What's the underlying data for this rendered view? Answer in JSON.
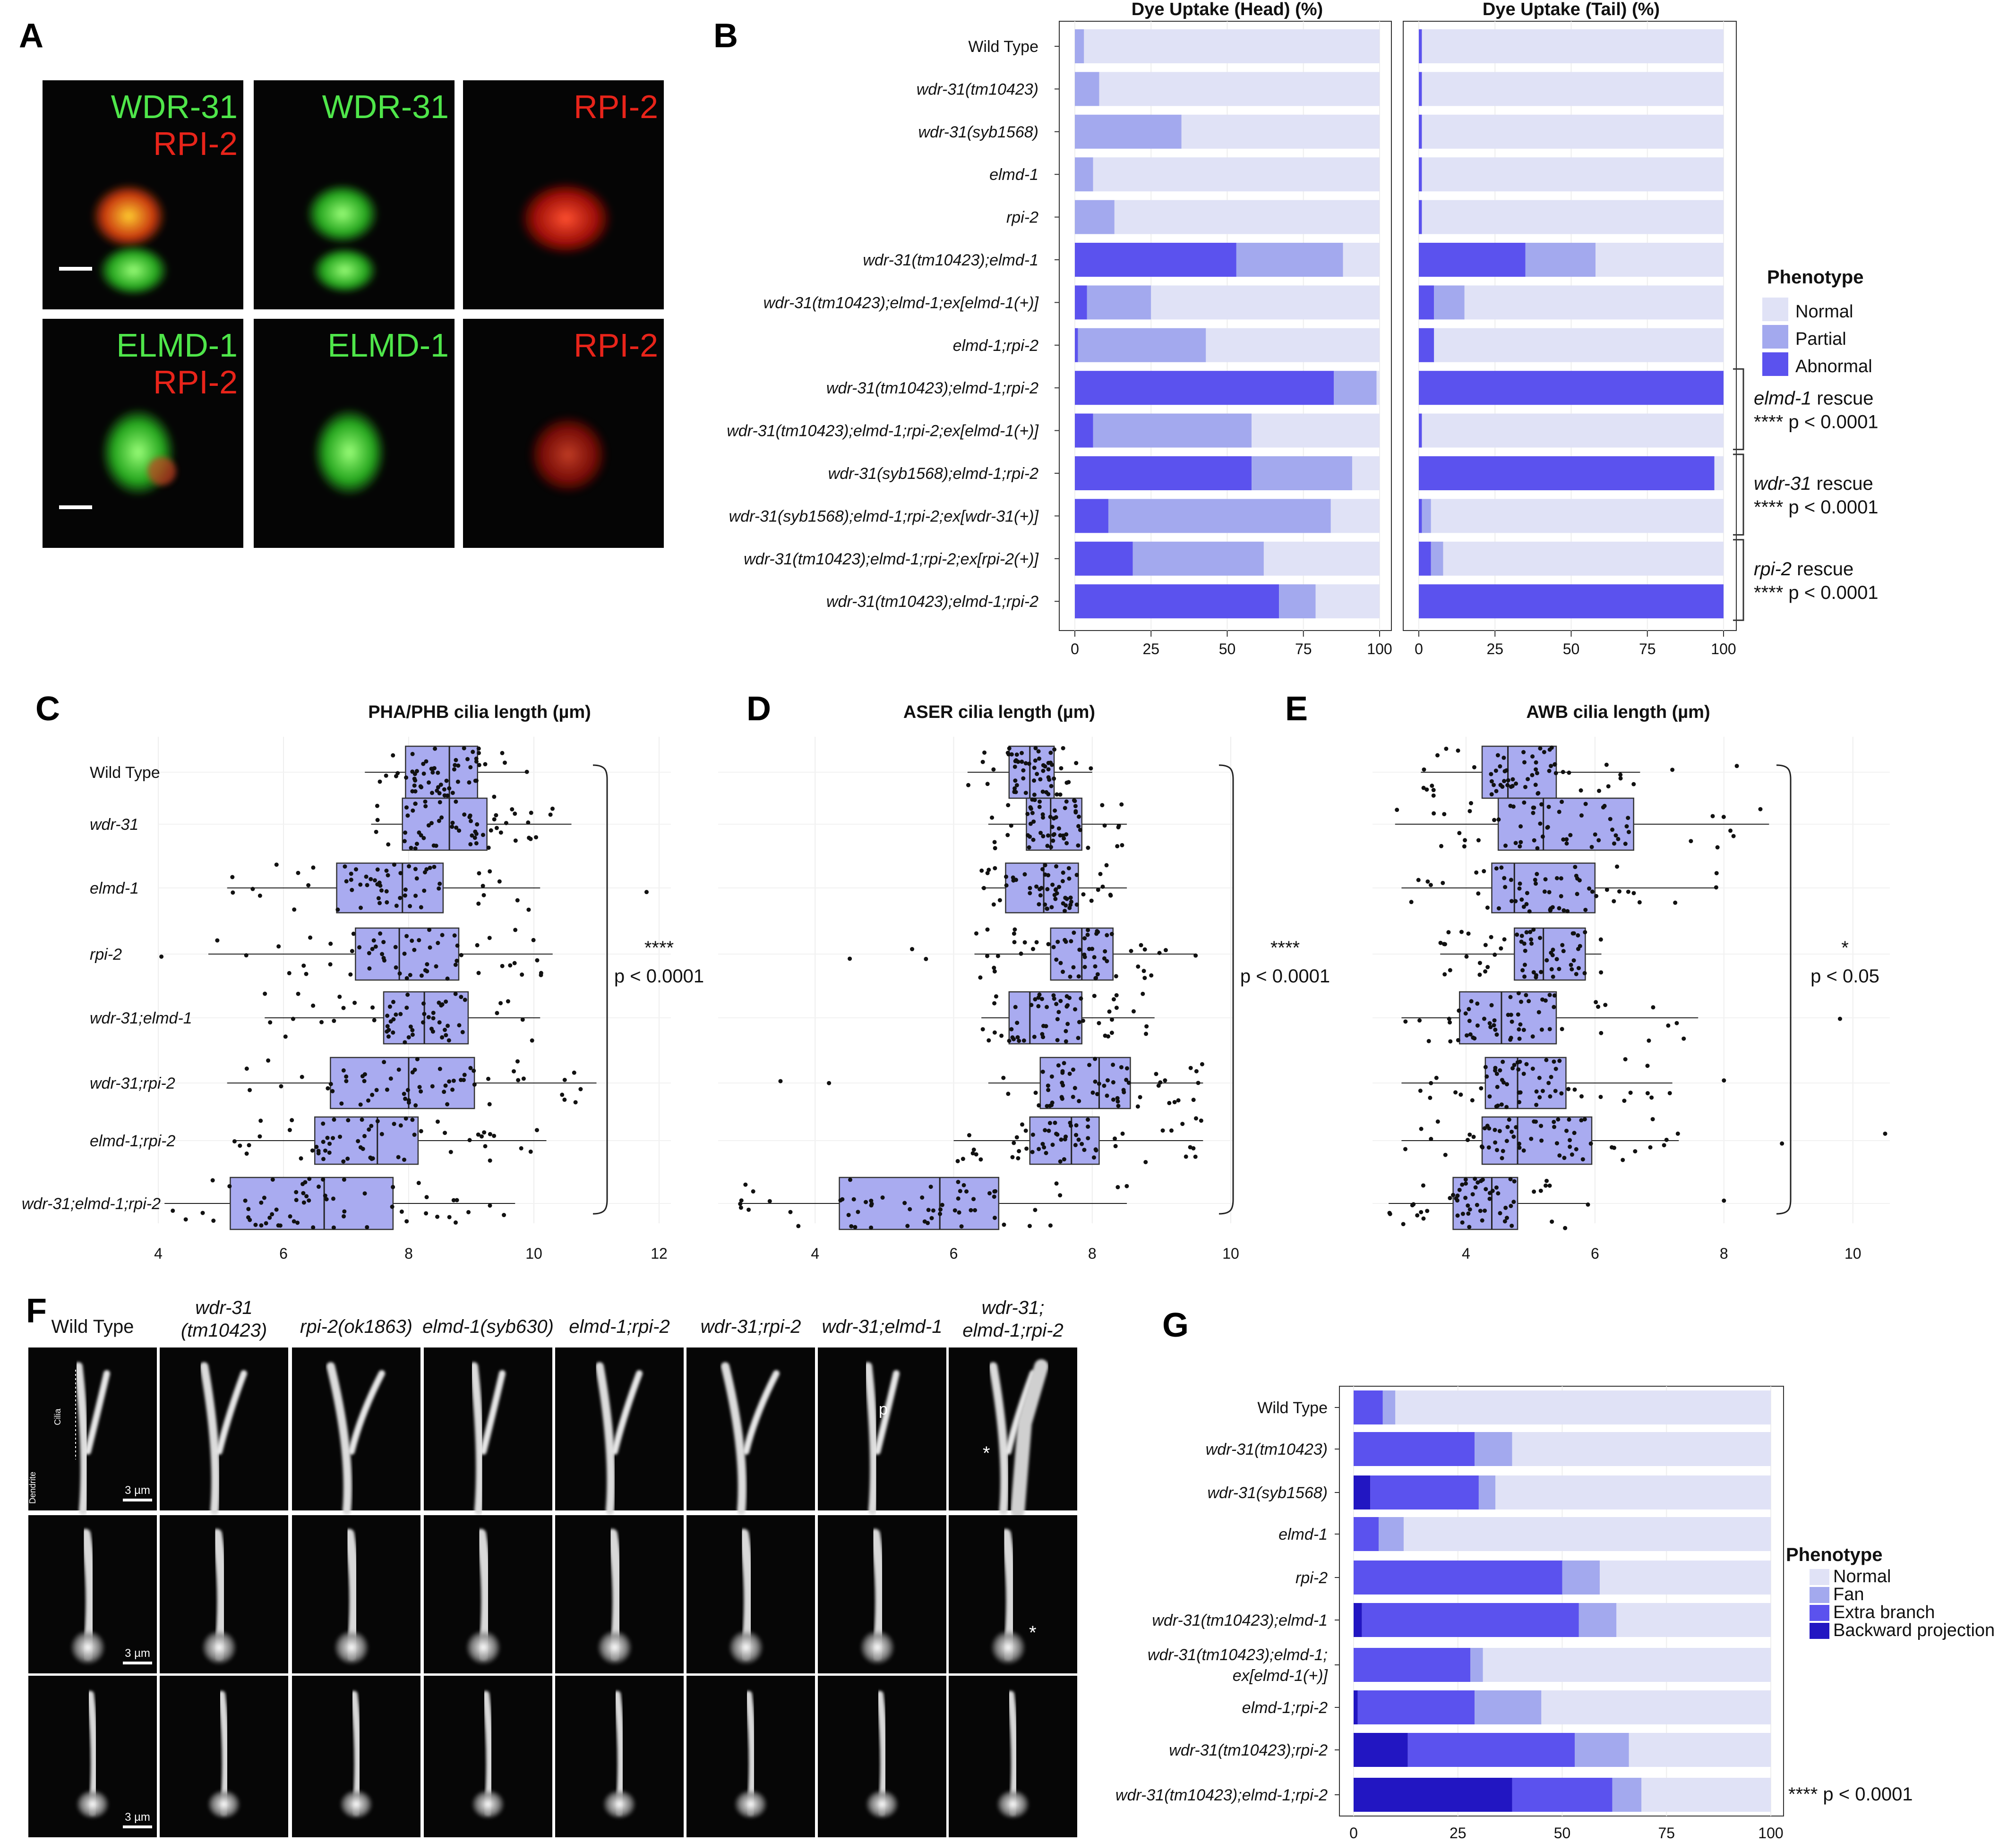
{
  "panel_letters": {
    "A": "A",
    "B": "B",
    "C": "C",
    "D": "D",
    "E": "E",
    "F": "F",
    "G": "G"
  },
  "colors": {
    "normal": "#e0e2f6",
    "partial": "#a3a9ee",
    "abnormal": "#5b52ee",
    "fan": "#a3a9ee",
    "extra_branch": "#5b52ee",
    "backward": "#2216c2",
    "box": "#a9abf0",
    "green": "#4fe64a",
    "red": "#e8241a"
  },
  "panel_a": {
    "rows": [
      [
        {
          "lines": [
            {
              "t": "WDR-31",
              "c": "green"
            },
            {
              "t": "RPI-2",
              "c": "red"
            }
          ],
          "blob": "merge1",
          "scalebar": true
        },
        {
          "lines": [
            {
              "t": "WDR-31",
              "c": "green"
            }
          ],
          "blob": "green1"
        },
        {
          "lines": [
            {
              "t": "RPI-2",
              "c": "red"
            }
          ],
          "blob": "red1"
        }
      ],
      [
        {
          "lines": [
            {
              "t": "ELMD-1",
              "c": "green"
            },
            {
              "t": "RPI-2",
              "c": "red"
            }
          ],
          "blob": "merge2",
          "scalebar": true
        },
        {
          "lines": [
            {
              "t": "ELMD-1",
              "c": "green"
            }
          ],
          "blob": "green2"
        },
        {
          "lines": [
            {
              "t": "RPI-2",
              "c": "red"
            }
          ],
          "blob": "red2"
        }
      ]
    ]
  },
  "chart_data": [
    {
      "id": "B",
      "type": "bar",
      "orientation": "horizontal",
      "stacked": true,
      "facets": [
        "Dye Uptake (Head) (%)",
        "Dye Uptake (Tail) (%)"
      ],
      "categories": [
        "Wild Type",
        "wdr-31(tm10423)",
        "wdr-31(syb1568)",
        "elmd-1",
        "rpi-2",
        "wdr-31(tm10423);elmd-1",
        "wdr-31(tm10423);elmd-1;ex[elmd-1(+)]",
        "elmd-1;rpi-2",
        "wdr-31(tm10423);elmd-1;rpi-2",
        "wdr-31(tm10423);elmd-1;rpi-2;ex[elmd-1(+)]",
        "wdr-31(syb1568);elmd-1;rpi-2",
        "wdr-31(syb1568);elmd-1;rpi-2;ex[wdr-31(+)]",
        "wdr-31(tm10423);elmd-1;rpi-2;ex[rpi-2(+)]",
        "wdr-31(tm10423);elmd-1;rpi-2"
      ],
      "italic": [
        false,
        true,
        true,
        true,
        true,
        true,
        true,
        true,
        true,
        true,
        true,
        true,
        true,
        true
      ],
      "head": {
        "Abnormal": [
          0,
          0,
          0,
          0,
          0,
          53,
          4,
          1,
          85,
          6,
          58,
          11,
          19,
          67
        ],
        "Partial": [
          3,
          8,
          35,
          6,
          13,
          35,
          21,
          42,
          14,
          52,
          33,
          73,
          43,
          12
        ],
        "Normal": [
          97,
          92,
          65,
          94,
          87,
          12,
          75,
          57,
          1,
          42,
          9,
          16,
          38,
          21
        ]
      },
      "tail": {
        "Abnormal": [
          1,
          1,
          1,
          1,
          1,
          35,
          5,
          5,
          100,
          1,
          97,
          1,
          4,
          100
        ],
        "Partial": [
          0,
          0,
          0,
          0,
          0,
          23,
          10,
          0,
          0,
          0,
          0,
          3,
          4,
          0
        ],
        "Normal": [
          99,
          99,
          99,
          99,
          99,
          42,
          85,
          95,
          0,
          99,
          3,
          96,
          92,
          0
        ]
      },
      "xticks": [
        0,
        25,
        50,
        75,
        100
      ],
      "xlim": [
        0,
        100
      ],
      "legend": {
        "title": "Phenotype",
        "entries": [
          "Normal",
          "Partial",
          "Abnormal"
        ]
      },
      "annotations": [
        {
          "name": "elmd-1",
          "rest": " rescue",
          "p": "**** p < 0.0001"
        },
        {
          "name": "wdr-31",
          "rest": " rescue",
          "p": "**** p < 0.0001"
        },
        {
          "name": "rpi-2",
          "rest": " rescue",
          "p": "**** p < 0.0001"
        }
      ]
    },
    {
      "id": "C",
      "type": "box",
      "orientation": "horizontal",
      "title": "PHA/PHB cilia length (µm)",
      "categories": [
        "Wild Type",
        "wdr-31",
        "elmd-1",
        "rpi-2",
        "wdr-31;elmd-1",
        "wdr-31;rpi-2",
        "elmd-1;rpi-2",
        "wdr-31;elmd-1;rpi-2"
      ],
      "italic": [
        false,
        true,
        true,
        true,
        true,
        true,
        true,
        true
      ],
      "boxes": [
        {
          "min": 7.3,
          "q1": 7.95,
          "med": 8.65,
          "q3": 9.1,
          "max": 9.9
        },
        {
          "min": 7.4,
          "q1": 7.9,
          "med": 8.65,
          "q3": 9.25,
          "max": 10.6
        },
        {
          "min": 5.1,
          "q1": 6.85,
          "med": 7.9,
          "q3": 8.55,
          "max": 10.1
        },
        {
          "min": 4.8,
          "q1": 7.15,
          "med": 7.85,
          "q3": 8.8,
          "max": 10.3
        },
        {
          "min": 5.7,
          "q1": 7.6,
          "med": 8.25,
          "q3": 8.95,
          "max": 10.1
        },
        {
          "min": 5.1,
          "q1": 6.75,
          "med": 8.0,
          "q3": 9.05,
          "max": 11.0
        },
        {
          "min": 5.2,
          "q1": 6.5,
          "med": 7.5,
          "q3": 8.15,
          "max": 10.2
        },
        {
          "min": 4.1,
          "q1": 5.15,
          "med": 6.65,
          "q3": 7.75,
          "max": 9.7
        }
      ],
      "xticks": [
        4,
        6,
        8,
        10,
        12
      ],
      "xlim": [
        4,
        12
      ],
      "significance": {
        "stars": "****",
        "p": "p < 0.0001"
      }
    },
    {
      "id": "D",
      "type": "box",
      "orientation": "horizontal",
      "title": "ASER cilia length  (µm)",
      "boxes": [
        {
          "min": 6.2,
          "q1": 6.8,
          "med": 7.1,
          "q3": 7.45,
          "max": 8.0
        },
        {
          "min": 6.5,
          "q1": 7.05,
          "med": 7.4,
          "q3": 7.85,
          "max": 8.5
        },
        {
          "min": 6.4,
          "q1": 6.75,
          "med": 7.3,
          "q3": 7.8,
          "max": 8.5
        },
        {
          "min": 6.3,
          "q1": 7.4,
          "med": 7.85,
          "q3": 8.3,
          "max": 9.5
        },
        {
          "min": 6.4,
          "q1": 6.8,
          "med": 7.1,
          "q3": 7.85,
          "max": 8.9
        },
        {
          "min": 6.5,
          "q1": 7.25,
          "med": 8.1,
          "q3": 8.55,
          "max": 9.6
        },
        {
          "min": 6.0,
          "q1": 7.1,
          "med": 7.7,
          "q3": 8.1,
          "max": 9.6
        },
        {
          "min": 2.9,
          "q1": 4.35,
          "med": 5.8,
          "q3": 6.65,
          "max": 8.5
        }
      ],
      "xticks": [
        4,
        6,
        8,
        10
      ],
      "xlim": [
        2.6,
        10
      ],
      "significance": {
        "stars": "****",
        "p": "p < 0.0001"
      }
    },
    {
      "id": "E",
      "type": "box",
      "orientation": "horizontal",
      "title": "AWB cilia length  (µm)",
      "boxes": [
        {
          "min": 3.3,
          "q1": 4.25,
          "med": 4.65,
          "q3": 5.4,
          "max": 6.7
        },
        {
          "min": 2.9,
          "q1": 4.5,
          "med": 5.2,
          "q3": 6.6,
          "max": 8.7
        },
        {
          "min": 3.0,
          "q1": 4.4,
          "med": 4.75,
          "q3": 6.0,
          "max": 7.9
        },
        {
          "min": 3.6,
          "q1": 4.75,
          "med": 5.2,
          "q3": 5.85,
          "max": 6.1
        },
        {
          "min": 3.0,
          "q1": 3.9,
          "med": 4.55,
          "q3": 5.4,
          "max": 7.6
        },
        {
          "min": 3.0,
          "q1": 4.3,
          "med": 4.8,
          "q3": 5.55,
          "max": 7.2
        },
        {
          "min": 3.0,
          "q1": 4.25,
          "med": 4.8,
          "q3": 5.95,
          "max": 7.3
        },
        {
          "min": 2.8,
          "q1": 3.8,
          "med": 4.4,
          "q3": 4.8,
          "max": 5.9
        }
      ],
      "xticks": [
        4,
        6,
        8,
        10
      ],
      "xlim": [
        2.55,
        10.5
      ],
      "significance": {
        "stars": "*",
        "p": "p < 0.05"
      }
    },
    {
      "id": "G",
      "type": "bar",
      "orientation": "horizontal",
      "stacked": true,
      "categories": [
        "Wild Type",
        "wdr-31(tm10423)",
        "wdr-31(syb1568)",
        "elmd-1",
        "rpi-2",
        "wdr-31(tm10423);elmd-1",
        "wdr-31(tm10423);elmd-1;\nex[elmd-1(+)]",
        "elmd-1;rpi-2",
        "wdr-31(tm10423);rpi-2",
        "wdr-31(tm10423);elmd-1;rpi-2"
      ],
      "italic": [
        false,
        true,
        true,
        true,
        true,
        true,
        true,
        true,
        true,
        true
      ],
      "series": [
        {
          "name": "Backward projection",
          "values": [
            0,
            0,
            4,
            0,
            0,
            2,
            0,
            1,
            13,
            38
          ]
        },
        {
          "name": "Extra branch",
          "values": [
            7,
            29,
            26,
            6,
            50,
            52,
            28,
            28,
            40,
            24
          ]
        },
        {
          "name": "Fan",
          "values": [
            3,
            9,
            4,
            6,
            9,
            9,
            3,
            16,
            13,
            7
          ]
        },
        {
          "name": "Normal",
          "values": [
            90,
            62,
            66,
            88,
            41,
            37,
            69,
            55,
            34,
            31
          ]
        }
      ],
      "xticks": [
        0,
        25,
        50,
        75,
        100
      ],
      "xlim": [
        0,
        100
      ],
      "legend": {
        "title": "Phenotype",
        "entries": [
          "Normal",
          "Fan",
          "Extra branch",
          "Backward projection"
        ]
      },
      "significance": {
        "text": "**** p < 0.0001"
      }
    }
  ],
  "panel_f": {
    "headers": [
      {
        "lines": [
          "Wild Type"
        ],
        "italic": false
      },
      {
        "lines": [
          "wdr-31",
          "(tm10423)"
        ],
        "italic": true
      },
      {
        "lines": [
          "rpi-2(ok1863)"
        ],
        "italic": true
      },
      {
        "lines": [
          "elmd-1(syb630)"
        ],
        "italic": true
      },
      {
        "lines": [
          "elmd-1;rpi-2"
        ],
        "italic": true
      },
      {
        "lines": [
          "wdr-31;rpi-2"
        ],
        "italic": true
      },
      {
        "lines": [
          "wdr-31;elmd-1"
        ],
        "italic": true
      },
      {
        "lines": [
          "wdr-31;",
          "elmd-1;rpi-2"
        ],
        "italic": true
      }
    ],
    "scalebar": "3 µm",
    "cilia_label": "Cilia",
    "dendrite_label": "Dendrite",
    "marker_p": "p",
    "marker_star": "*"
  }
}
